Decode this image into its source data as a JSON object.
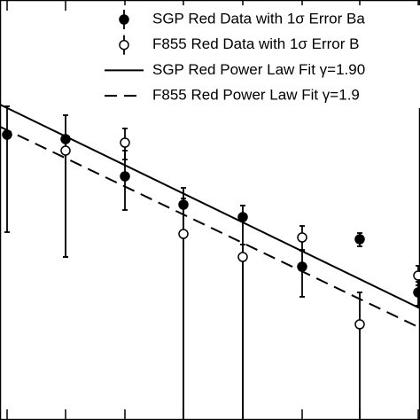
{
  "chart_data": {
    "type": "scatter",
    "xlim": [
      0,
      474
    ],
    "ylim": [
      0,
      474
    ],
    "xticks": [
      8,
      74,
      141,
      207,
      274,
      341,
      406,
      472
    ],
    "series": [
      {
        "name": "SGP Red Data with 1σ Error Ba",
        "kind": "points",
        "marker": "filled",
        "color": "#000000",
        "x": [
          8,
          74,
          141,
          207,
          274,
          341,
          406,
          472
        ],
        "values": [
          322,
          317,
          275,
          243,
          229,
          173,
          204,
          144
        ],
        "lower": [
          212,
          184,
          237,
          0,
          0,
          139,
          196,
          129
        ],
        "upper": [
          354,
          344,
          304,
          262,
          242,
          191,
          211,
          156
        ]
      },
      {
        "name": "F855 Red Data with 1σ Error B",
        "kind": "points",
        "marker": "open",
        "color": "#000000",
        "x": [
          74,
          141,
          207,
          274,
          341,
          406,
          472
        ],
        "values": [
          304,
          313,
          210,
          184,
          206,
          108,
          163
        ],
        "lower": [
          184,
          294,
          0,
          0,
          192,
          0,
          152
        ],
        "upper": [
          318,
          329,
          250,
          198,
          219,
          144,
          174
        ]
      },
      {
        "name": "SGP Red Power Law Fit γ=1.90",
        "kind": "line",
        "dash": false,
        "color": "#000000",
        "x": [
          0,
          474
        ],
        "values": [
          356,
          126
        ]
      },
      {
        "name": "F855 Red Power Law Fit γ=1.9",
        "kind": "line",
        "dash": true,
        "color": "#000000",
        "x": [
          0,
          474
        ],
        "values": [
          331,
          104
        ]
      }
    ]
  }
}
